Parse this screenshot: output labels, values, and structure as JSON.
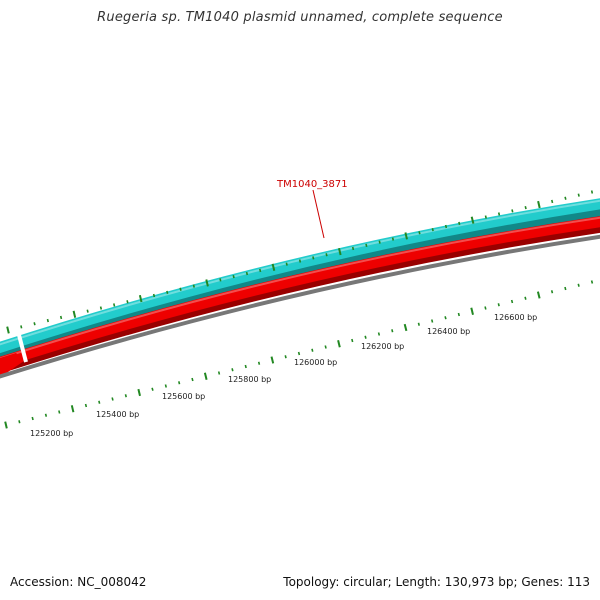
{
  "title": "Ruegeria sp. TM1040 plasmid unnamed, complete sequence",
  "gene_label": {
    "text": "TM1040_3871",
    "color": "#cc0000"
  },
  "position_labels": [
    "125200 bp",
    "125400 bp",
    "125600 bp",
    "125800 bp",
    "126000 bp",
    "126200 bp",
    "126400 bp",
    "126600 bp"
  ],
  "footer": {
    "accession": "Accession: NC_008042",
    "summary": "Topology: circular; Length: 130,973 bp; Genes: 113"
  },
  "colors": {
    "forward_gene": "#22cccc",
    "forward_gene_shadow": "#118888",
    "reverse_gene": "#ee0000",
    "reverse_gene_shadow": "#990000",
    "backbone": "#777777",
    "ticks": "#228822"
  }
}
